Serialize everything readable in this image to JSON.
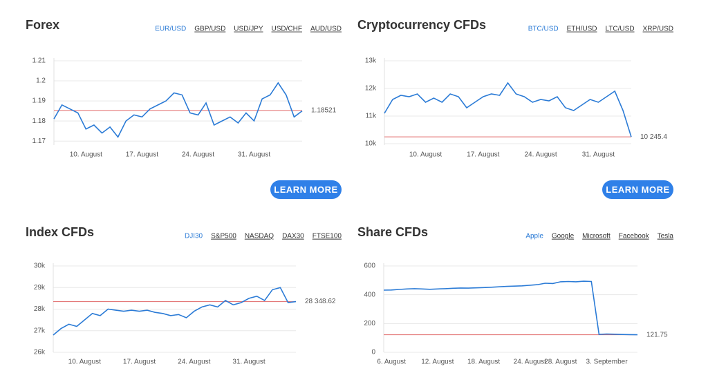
{
  "chart_data": [
    {
      "type": "line",
      "title": "Forex",
      "tabs": [
        "EUR/USD",
        "GBP/USD",
        "USD/JPY",
        "USD/CHF",
        "AUD/USD"
      ],
      "active_tab": 0,
      "button": "LEARN MORE",
      "categories": [
        null,
        null,
        null,
        null,
        "10. August",
        null,
        null,
        null,
        null,
        null,
        null,
        "17. August",
        null,
        null,
        null,
        null,
        null,
        null,
        "24. August",
        null,
        null,
        null,
        null,
        null,
        null,
        "31. August",
        null,
        null,
        null,
        null,
        null,
        null
      ],
      "values": [
        1.181,
        1.188,
        1.186,
        1.184,
        1.176,
        1.178,
        1.174,
        1.177,
        1.172,
        1.18,
        1.183,
        1.182,
        1.186,
        1.188,
        1.19,
        1.194,
        1.193,
        1.184,
        1.183,
        1.189,
        1.178,
        1.18,
        1.182,
        1.179,
        1.184,
        1.18,
        1.191,
        1.193,
        1.199,
        1.193,
        1.182,
        1.185
      ],
      "color": "#2b7bd6",
      "current": 1.18521,
      "current_color": "#e06666",
      "ylim": [
        1.168,
        1.21
      ],
      "yticks": [
        1.17,
        1.18,
        1.19,
        1.2,
        1.21
      ],
      "grid": true
    },
    {
      "type": "line",
      "title": "Cryptocurrency CFDs",
      "tabs": [
        "BTC/USD",
        "ETH/USD",
        "LTC/USD",
        "XRP/USD"
      ],
      "active_tab": 0,
      "button": "LEARN MORE",
      "categories": [
        null,
        null,
        null,
        null,
        null,
        "10. August",
        null,
        null,
        null,
        null,
        null,
        null,
        "17. August",
        null,
        null,
        null,
        null,
        null,
        null,
        "24. August",
        null,
        null,
        null,
        null,
        null,
        null,
        "31. August",
        null,
        null,
        null,
        null
      ],
      "values": [
        11100,
        11600,
        11750,
        11700,
        11800,
        11500,
        11650,
        11500,
        11800,
        11700,
        11300,
        11500,
        11700,
        11800,
        11750,
        12200,
        11800,
        11700,
        11500,
        11600,
        11550,
        11700,
        11300,
        11200,
        11400,
        11600,
        11500,
        11700,
        11900,
        11200,
        10245.4
      ],
      "color": "#2b7bd6",
      "current": {
        "value": 10245.4,
        "label": "10 245.4"
      },
      "current_color": "#e06666",
      "ylim": [
        9950,
        13000
      ],
      "yticks": [
        {
          "value": 10000,
          "label": "10k"
        },
        {
          "value": 11000,
          "label": "11k"
        },
        {
          "value": 12000,
          "label": "12k"
        },
        {
          "value": 13000,
          "label": "13k"
        }
      ],
      "grid": true
    },
    {
      "type": "line",
      "title": "Index CFDs",
      "tabs": [
        "DJI30",
        "S&P500",
        "NASDAQ",
        "DAX30",
        "FTSE100"
      ],
      "active_tab": 0,
      "categories": [
        null,
        null,
        null,
        null,
        "10. August",
        null,
        null,
        null,
        null,
        null,
        null,
        "17. August",
        null,
        null,
        null,
        null,
        null,
        null,
        "24. August",
        null,
        null,
        null,
        null,
        null,
        null,
        "31. August",
        null,
        null,
        null,
        null,
        null,
        null
      ],
      "values": [
        26800,
        27100,
        27300,
        27200,
        27500,
        27800,
        27700,
        28000,
        27950,
        27900,
        27950,
        27900,
        27950,
        27850,
        27800,
        27700,
        27750,
        27600,
        27900,
        28100,
        28200,
        28100,
        28400,
        28200,
        28300,
        28500,
        28600,
        28400,
        28900,
        29000,
        28300,
        28348.62
      ],
      "color": "#2b7bd6",
      "current": {
        "value": 28348.62,
        "label": "28 348.62"
      },
      "current_color": "#e06666",
      "ylim": [
        26000,
        30000
      ],
      "yticks": [
        {
          "value": 26000,
          "label": "26k"
        },
        {
          "value": 27000,
          "label": "27k"
        },
        {
          "value": 28000,
          "label": "28k"
        },
        {
          "value": 29000,
          "label": "29k"
        },
        {
          "value": 30000,
          "label": "30k"
        }
      ],
      "grid": true
    },
    {
      "type": "line",
      "title": "Share CFDs",
      "tabs": [
        "Apple",
        "Google",
        "Microsoft",
        "Facebook",
        "Tesla"
      ],
      "active_tab": 0,
      "categories": [
        null,
        "6. August",
        null,
        null,
        null,
        null,
        null,
        "12. August",
        null,
        null,
        null,
        null,
        null,
        "18. August",
        null,
        null,
        null,
        null,
        null,
        "24. August",
        null,
        null,
        null,
        "28. August",
        null,
        null,
        null,
        null,
        null,
        "3. September",
        null,
        null,
        null,
        null
      ],
      "values": [
        432,
        433,
        437,
        440,
        442,
        440,
        438,
        440,
        442,
        445,
        447,
        446,
        448,
        450,
        452,
        455,
        458,
        460,
        462,
        466,
        470,
        480,
        478,
        490,
        492,
        490,
        494,
        492,
        125,
        127,
        126,
        124,
        123,
        121.75
      ],
      "color": "#2b7bd6",
      "current": 121.75,
      "current_color": "#e06666",
      "ylim": [
        0,
        600
      ],
      "yticks": [
        0,
        200,
        400,
        600
      ],
      "grid": true
    }
  ]
}
